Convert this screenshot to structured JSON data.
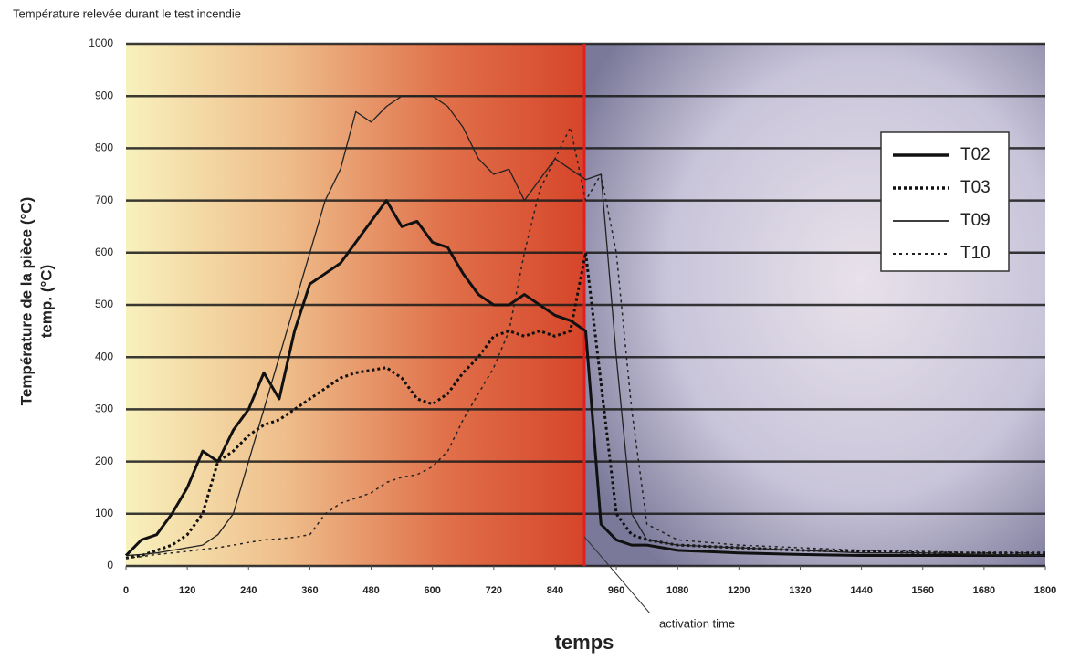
{
  "chart_data": {
    "type": "line",
    "title": "Température relevée durant le test incendie",
    "y_label": [
      "Température de la pièce (°C)",
      "temp. (°C)"
    ],
    "x_label": "temps",
    "annotation": "activation time",
    "x": [
      0,
      30,
      60,
      90,
      120,
      150,
      180,
      210,
      240,
      270,
      300,
      330,
      360,
      390,
      420,
      450,
      480,
      510,
      540,
      570,
      600,
      630,
      660,
      690,
      720,
      750,
      780,
      810,
      840,
      870,
      900,
      930,
      960,
      990,
      1020,
      1080,
      1200,
      1320,
      1440,
      1560,
      1680,
      1800
    ],
    "series": [
      {
        "name": "T02",
        "color": "#111111",
        "width": 3,
        "style": "solid",
        "values": [
          20,
          50,
          60,
          100,
          150,
          220,
          200,
          260,
          300,
          370,
          320,
          450,
          540,
          560,
          580,
          620,
          660,
          700,
          650,
          660,
          620,
          610,
          560,
          520,
          500,
          500,
          520,
          500,
          480,
          470,
          450,
          80,
          50,
          40,
          40,
          30,
          25,
          22,
          20,
          20,
          20,
          20
        ]
      },
      {
        "name": "T03",
        "color": "#111111",
        "width": 3,
        "style": "dotted",
        "values": [
          15,
          20,
          30,
          40,
          60,
          100,
          200,
          220,
          250,
          270,
          280,
          300,
          320,
          340,
          360,
          370,
          375,
          380,
          360,
          320,
          310,
          330,
          370,
          400,
          440,
          450,
          440,
          450,
          440,
          450,
          600,
          350,
          100,
          60,
          50,
          40,
          35,
          30,
          28,
          25,
          25,
          25
        ]
      },
      {
        "name": "T09",
        "color": "#222222",
        "width": 1.3,
        "style": "solid",
        "values": [
          20,
          22,
          25,
          30,
          35,
          40,
          60,
          100,
          200,
          300,
          400,
          500,
          600,
          700,
          760,
          870,
          850,
          880,
          900,
          900,
          900,
          880,
          840,
          780,
          750,
          760,
          700,
          740,
          780,
          760,
          740,
          750,
          400,
          100,
          50,
          40,
          35,
          30,
          25,
          25,
          22,
          20
        ]
      },
      {
        "name": "T10",
        "color": "#222222",
        "width": 1.5,
        "style": "dotted",
        "values": [
          15,
          18,
          22,
          25,
          28,
          32,
          35,
          40,
          45,
          50,
          52,
          55,
          60,
          100,
          120,
          130,
          140,
          160,
          170,
          175,
          190,
          220,
          280,
          330,
          380,
          450,
          600,
          720,
          780,
          840,
          700,
          750,
          600,
          300,
          80,
          50,
          40,
          35,
          30,
          28,
          25,
          25
        ]
      }
    ],
    "xlim": [
      0,
      1800
    ],
    "ylim": [
      0,
      1000
    ],
    "xticks": [
      0,
      120,
      240,
      360,
      480,
      600,
      720,
      840,
      960,
      1080,
      1200,
      1320,
      1440,
      1560,
      1680,
      1800
    ],
    "yticks": [
      0,
      100,
      200,
      300,
      400,
      500,
      600,
      700,
      800,
      900,
      1000
    ],
    "grid": true,
    "legend": "upper right"
  }
}
